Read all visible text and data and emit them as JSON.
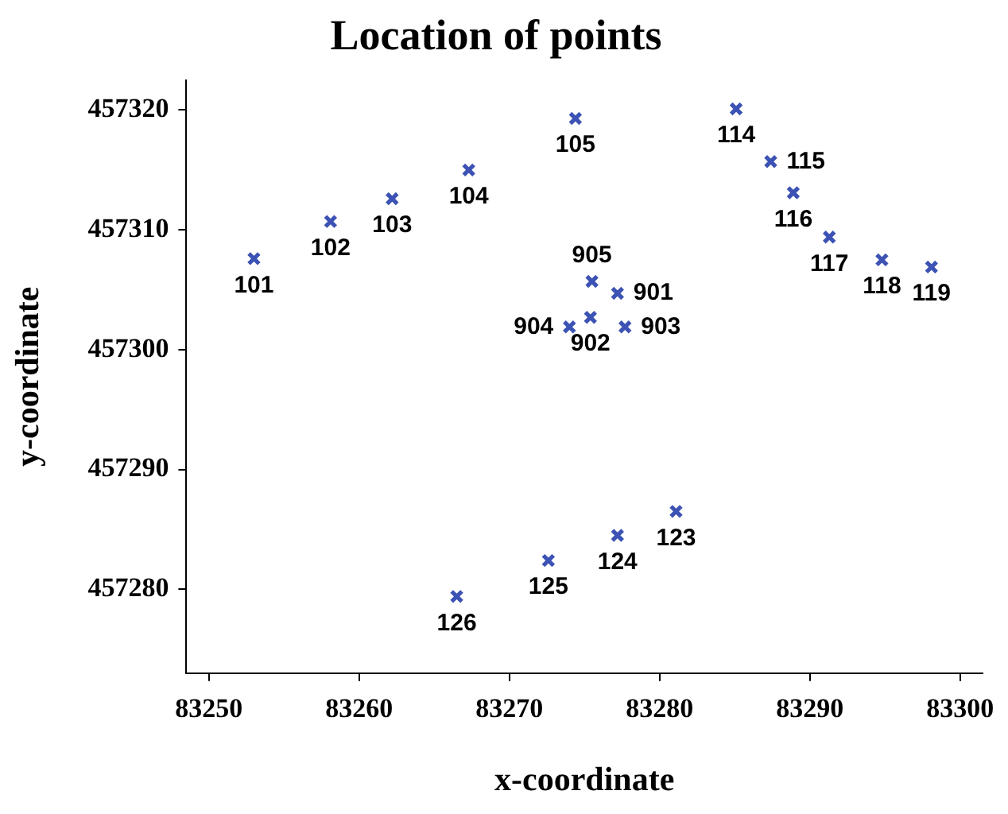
{
  "chart_data": {
    "type": "scatter",
    "title": "Location of points",
    "xlabel": "x-coordinate",
    "ylabel": "y-coordinate",
    "x": [
      83253.0,
      83258.1,
      83262.2,
      83267.3,
      83274.4,
      83285.1,
      83287.4,
      83288.9,
      83291.3,
      83294.8,
      83298.1,
      83275.5,
      83277.2,
      83275.4,
      83274.0,
      83277.7,
      83281.1,
      83277.2,
      83272.6,
      83266.5
    ],
    "series": [
      {
        "color": "#3c52b4",
        "values": [
          457307.6,
          457310.7,
          457312.6,
          457315.0,
          457319.3,
          457320.1,
          457315.7,
          457313.1,
          457309.4,
          457307.5,
          457306.9,
          457305.7,
          457304.7,
          457302.7,
          457301.9,
          457301.9,
          457286.5,
          457284.5,
          457282.4,
          457279.4
        ]
      }
    ],
    "xlim": [
      83248.5,
      83301.5
    ],
    "ylim": [
      457273,
      457322.5
    ],
    "xticks": [
      83250,
      83260,
      83270,
      83280,
      83290,
      83300
    ],
    "yticks": [
      457280,
      457290,
      457300,
      457310,
      457320
    ],
    "grid": false,
    "legend": false,
    "marker": "cross",
    "annotations": [
      {
        "text": "101",
        "x": 83253.0,
        "y": 457307.6
      },
      {
        "text": "102",
        "x": 83258.1,
        "y": 457310.7
      },
      {
        "text": "103",
        "x": 83262.2,
        "y": 457312.6
      },
      {
        "text": "104",
        "x": 83267.3,
        "y": 457315.0
      },
      {
        "text": "105",
        "x": 83274.4,
        "y": 457319.3
      },
      {
        "text": "114",
        "x": 83285.1,
        "y": 457320.1
      },
      {
        "text": "115",
        "x": 83287.4,
        "y": 457315.7
      },
      {
        "text": "116",
        "x": 83288.9,
        "y": 457313.1
      },
      {
        "text": "117",
        "x": 83291.3,
        "y": 457309.4
      },
      {
        "text": "118",
        "x": 83294.8,
        "y": 457307.5
      },
      {
        "text": "119",
        "x": 83298.1,
        "y": 457306.9
      },
      {
        "text": "905",
        "x": 83275.5,
        "y": 457305.7
      },
      {
        "text": "901",
        "x": 83277.2,
        "y": 457304.7
      },
      {
        "text": "902",
        "x": 83275.4,
        "y": 457302.7
      },
      {
        "text": "904",
        "x": 83274.0,
        "y": 457301.9
      },
      {
        "text": "903",
        "x": 83277.7,
        "y": 457301.9
      },
      {
        "text": "123",
        "x": 83281.1,
        "y": 457286.5
      },
      {
        "text": "124",
        "x": 83277.2,
        "y": 457284.5
      },
      {
        "text": "125",
        "x": 83272.6,
        "y": 457282.4
      },
      {
        "text": "126",
        "x": 83266.5,
        "y": 457279.4
      }
    ]
  }
}
